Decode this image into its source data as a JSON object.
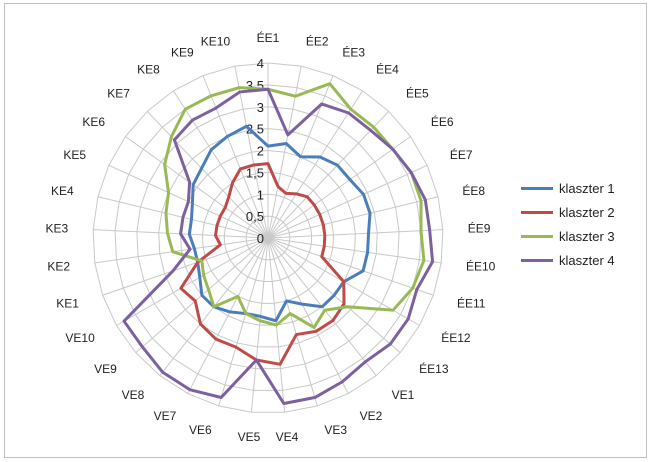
{
  "chart_data": {
    "type": "radar",
    "categories": [
      "ÉE1",
      "ÉE2",
      "ÉE3",
      "ÉE4",
      "ÉE5",
      "ÉE6",
      "ÉE7",
      "ÉE8",
      "ÉE9",
      "ÉE10",
      "ÉE11",
      "ÉE12",
      "ÉE13",
      "VE1",
      "VE2",
      "VE3",
      "VE4",
      "VE5",
      "VE6",
      "VE7",
      "VE8",
      "VE9",
      "VE10",
      "KE1",
      "KE2",
      "KE3",
      "KE4",
      "KE5",
      "KE6",
      "KE7",
      "KE8",
      "KE9",
      "KE10"
    ],
    "rmax": 4,
    "ticks": [
      "0",
      "0,5",
      "1",
      "1,5",
      "2",
      "2,5",
      "3",
      "3,5",
      "4"
    ],
    "series": [
      {
        "name": "klaszter 1",
        "color": "#4a7ebb",
        "values": [
          2.1,
          2.2,
          2.0,
          2.2,
          2.3,
          2.3,
          2.4,
          2.4,
          2.3,
          2.3,
          2.3,
          2.0,
          2.0,
          2.0,
          1.7,
          1.5,
          1.9,
          1.8,
          1.8,
          1.9,
          2.0,
          2.0,
          1.8,
          1.7,
          1.7,
          1.8,
          1.8,
          1.9,
          2.1,
          2.2,
          2.4,
          2.5,
          2.6
        ]
      },
      {
        "name": "klaszter 2",
        "color": "#be4b48",
        "values": [
          1.7,
          1.2,
          1.1,
          1.2,
          1.3,
          1.3,
          1.3,
          1.3,
          1.3,
          1.3,
          1.3,
          2.0,
          2.3,
          2.4,
          2.4,
          2.3,
          2.9,
          2.8,
          2.6,
          2.6,
          2.5,
          2.2,
          2.3,
          1.7,
          1.1,
          1.2,
          1.2,
          1.2,
          1.2,
          1.3,
          1.5,
          1.7,
          1.7
        ]
      },
      {
        "name": "klaszter 3",
        "color": "#98b954",
        "values": [
          3.4,
          3.3,
          3.8,
          3.5,
          3.5,
          3.5,
          3.6,
          3.6,
          3.5,
          3.6,
          3.5,
          3.3,
          2.4,
          2.1,
          2.3,
          1.8,
          2.0,
          1.9,
          1.8,
          1.5,
          2.0,
          1.8,
          1.7,
          1.6,
          2.2,
          2.3,
          2.4,
          2.5,
          2.9,
          3.2,
          3.5,
          3.5,
          3.5
        ]
      },
      {
        "name": "klaszter 4",
        "color": "#7d60a0",
        "values": [
          3.4,
          2.4,
          3.3,
          3.4,
          3.4,
          3.5,
          3.6,
          3.7,
          3.7,
          3.8,
          3.6,
          3.7,
          3.7,
          3.6,
          3.7,
          3.8,
          3.8,
          2.8,
          3.8,
          3.9,
          3.9,
          3.8,
          3.8,
          2.3,
          1.8,
          2.0,
          2.0,
          2.0,
          2.2,
          3.1,
          3.2,
          3.2,
          3.4
        ]
      }
    ],
    "legend_position": "right",
    "grid": true
  }
}
